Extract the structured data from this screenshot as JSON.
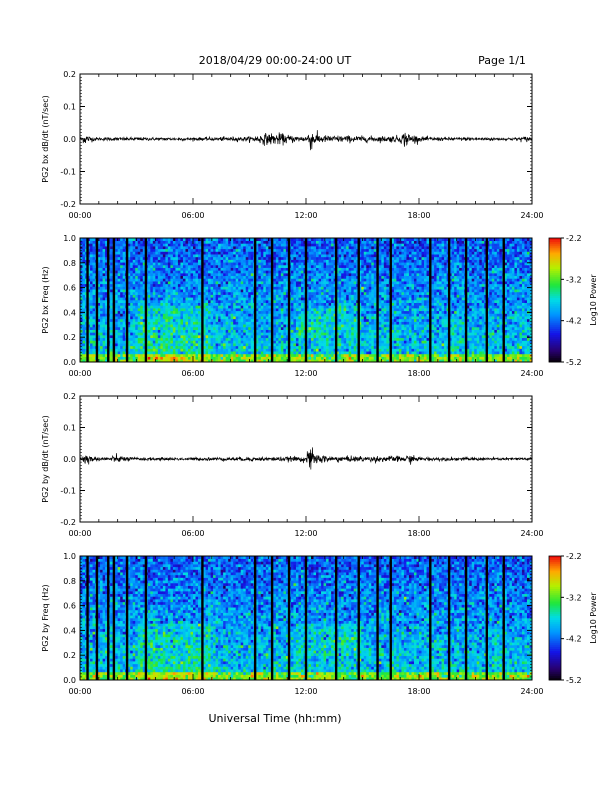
{
  "header": {
    "title": "2018/04/29  00:00-24:00 UT",
    "page": "Page 1/1"
  },
  "footer": {
    "xlabel": "Universal Time (hh:mm)"
  },
  "chart_data": [
    {
      "type": "line",
      "ylabel": "PG2 bx dB/dt (nT/sec)",
      "xlim": [
        0,
        24
      ],
      "ylim": [
        -0.2,
        0.2
      ],
      "x_tick_labels": [
        "00:00",
        "06:00",
        "12:00",
        "18:00",
        "24:00"
      ],
      "y_tick_labels": [
        "-0.2",
        "-0.1",
        "0.0",
        "0.1",
        "0.2"
      ],
      "y_tick_values": [
        -0.2,
        -0.1,
        0.0,
        0.1,
        0.2
      ],
      "series": [
        {
          "x": [
            0,
            0.3,
            0.5,
            1,
            2,
            3,
            4,
            5,
            6,
            7,
            8,
            9,
            9.5,
            10,
            10.5,
            11,
            11.5,
            12,
            12.2,
            12.5,
            13,
            14,
            15,
            16,
            17,
            17.3,
            17.5,
            18,
            19,
            20,
            21,
            22,
            23,
            23.8,
            24
          ],
          "amplitude": [
            0.005,
            0.02,
            0.01,
            0.005,
            0.006,
            0.006,
            0.005,
            0.005,
            0.005,
            0.006,
            0.007,
            0.008,
            0.015,
            0.02,
            0.02,
            0.015,
            0.01,
            0.01,
            0.04,
            0.02,
            0.012,
            0.012,
            0.01,
            0.01,
            0.012,
            0.03,
            0.02,
            0.008,
            0.006,
            0.006,
            0.006,
            0.005,
            0.005,
            0.01,
            0.005
          ]
        }
      ]
    },
    {
      "type": "heatmap",
      "ylabel": "PG2 bx Freq (Hz)",
      "xlim": [
        0,
        24
      ],
      "ylim": [
        0.0,
        1.0
      ],
      "x_tick_labels": [
        "00:00",
        "06:00",
        "12:00",
        "18:00",
        "24:00"
      ],
      "y_tick_labels": [
        "0.0",
        "0.2",
        "0.4",
        "0.6",
        "0.8",
        "1.0"
      ],
      "y_tick_values": [
        0.0,
        0.2,
        0.4,
        0.6,
        0.8,
        1.0
      ],
      "colorbar": {
        "label": "Log10 Power",
        "range": [
          -5.2,
          -2.2
        ],
        "tick_labels": [
          "-2.2",
          "-3.2",
          "-4.2",
          "-5.2"
        ],
        "tick_values": [
          -2.2,
          -3.2,
          -4.2,
          -5.2
        ]
      },
      "gap_hours": [
        0.4,
        0.9,
        1.5,
        1.8,
        2.5,
        3.5,
        6.5,
        9.3,
        10.2,
        11.1,
        12.0,
        13.6,
        14.8,
        15.8,
        16.5,
        18.6,
        19.6,
        20.5,
        21.6,
        22.5
      ]
    },
    {
      "type": "line",
      "ylabel": "PG2 by dB/dt (nT/sec)",
      "xlim": [
        0,
        24
      ],
      "ylim": [
        -0.2,
        0.2
      ],
      "x_tick_labels": [
        "00:00",
        "06:00",
        "12:00",
        "18:00",
        "24:00"
      ],
      "y_tick_labels": [
        "-0.2",
        "-0.1",
        "0.0",
        "0.1",
        "0.2"
      ],
      "y_tick_values": [
        -0.2,
        -0.1,
        0.0,
        0.1,
        0.2
      ],
      "series": [
        {
          "x": [
            0,
            0.3,
            0.6,
            1,
            2,
            3,
            4,
            5,
            6,
            7,
            8,
            9,
            10,
            11,
            12,
            12.2,
            12.5,
            13,
            14,
            15,
            16,
            17,
            17.5,
            18,
            19,
            20,
            21,
            22,
            23,
            24
          ],
          "amplitude": [
            0.005,
            0.025,
            0.01,
            0.006,
            0.012,
            0.005,
            0.005,
            0.005,
            0.005,
            0.006,
            0.006,
            0.007,
            0.007,
            0.008,
            0.01,
            0.045,
            0.02,
            0.012,
            0.01,
            0.01,
            0.01,
            0.01,
            0.015,
            0.007,
            0.006,
            0.006,
            0.006,
            0.005,
            0.005,
            0.005
          ]
        }
      ]
    },
    {
      "type": "heatmap",
      "ylabel": "PG2 by Freq (Hz)",
      "xlim": [
        0,
        24
      ],
      "ylim": [
        0.0,
        1.0
      ],
      "x_tick_labels": [
        "00:00",
        "06:00",
        "12:00",
        "18:00",
        "24:00"
      ],
      "y_tick_labels": [
        "0.0",
        "0.2",
        "0.4",
        "0.6",
        "0.8",
        "1.0"
      ],
      "y_tick_values": [
        0.0,
        0.2,
        0.4,
        0.6,
        0.8,
        1.0
      ],
      "colorbar": {
        "label": "Log10 Power",
        "range": [
          -5.2,
          -2.2
        ],
        "tick_labels": [
          "-2.2",
          "-3.2",
          "-4.2",
          "-5.2"
        ],
        "tick_values": [
          -2.2,
          -3.2,
          -4.2,
          -5.2
        ]
      },
      "gap_hours": [
        0.4,
        0.9,
        1.5,
        1.8,
        2.5,
        3.5,
        6.5,
        9.3,
        10.2,
        11.1,
        12.0,
        13.6,
        14.8,
        15.8,
        16.5,
        18.6,
        19.6,
        20.5,
        21.6,
        22.5
      ]
    }
  ]
}
